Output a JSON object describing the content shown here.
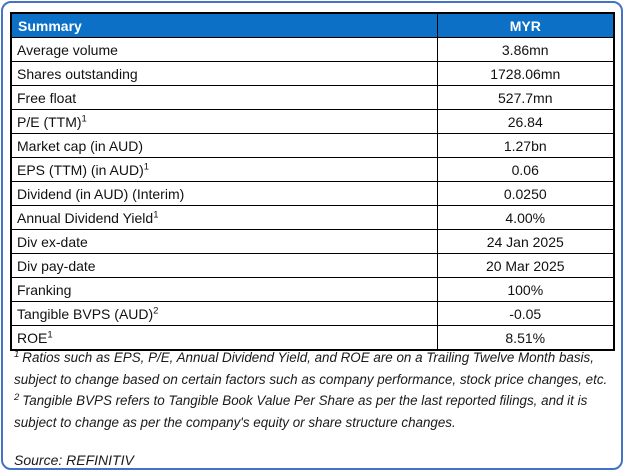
{
  "colors": {
    "frame_border": "#4472C4",
    "header_background": "#0B70C6",
    "header_text": "#FFFFFF",
    "table_border": "#000000",
    "body_text": "#1A1A1A"
  },
  "table": {
    "header": {
      "label": "Summary",
      "currency": "MYR"
    },
    "rows": [
      {
        "label": "Average volume",
        "value": "3.86mn"
      },
      {
        "label": "Shares outstanding",
        "value": "1728.06mn"
      },
      {
        "label": "Free float",
        "value": "527.7mn"
      },
      {
        "label": "P/E (TTM)",
        "sup": "1",
        "value": "26.84"
      },
      {
        "label": "Market cap (in AUD)",
        "value": "1.27bn"
      },
      {
        "label": "EPS (TTM) (in AUD)",
        "sup": "1",
        "value": "0.06"
      },
      {
        "label": "Dividend (in AUD) (Interim)",
        "value": "0.0250"
      },
      {
        "label": "Annual Dividend Yield",
        "sup": "1",
        "value": "4.00%"
      },
      {
        "label": "Div ex-date",
        "value": "24 Jan 2025"
      },
      {
        "label": "Div pay-date",
        "value": "20 Mar 2025"
      },
      {
        "label": "Franking",
        "value": "100%"
      },
      {
        "label": "Tangible BVPS (AUD)",
        "sup": "2",
        "value": "-0.05"
      },
      {
        "label": "ROE",
        "sup": "1",
        "value": "8.51%"
      }
    ]
  },
  "footnotes": [
    {
      "sup": "1",
      "text": "Ratios such as EPS, P/E,  Annual Dividend Yield, and ROE are on a Trailing Twelve Month basis, subject to change based on certain factors such as company performance, stock price changes, etc."
    },
    {
      "sup": "2",
      "text": "Tangible BVPS refers to Tangible Book Value Per Share as per the last reported filings, and it is subject to change as per the company's equity or share structure changes."
    }
  ],
  "source": "Source: REFINITIV"
}
